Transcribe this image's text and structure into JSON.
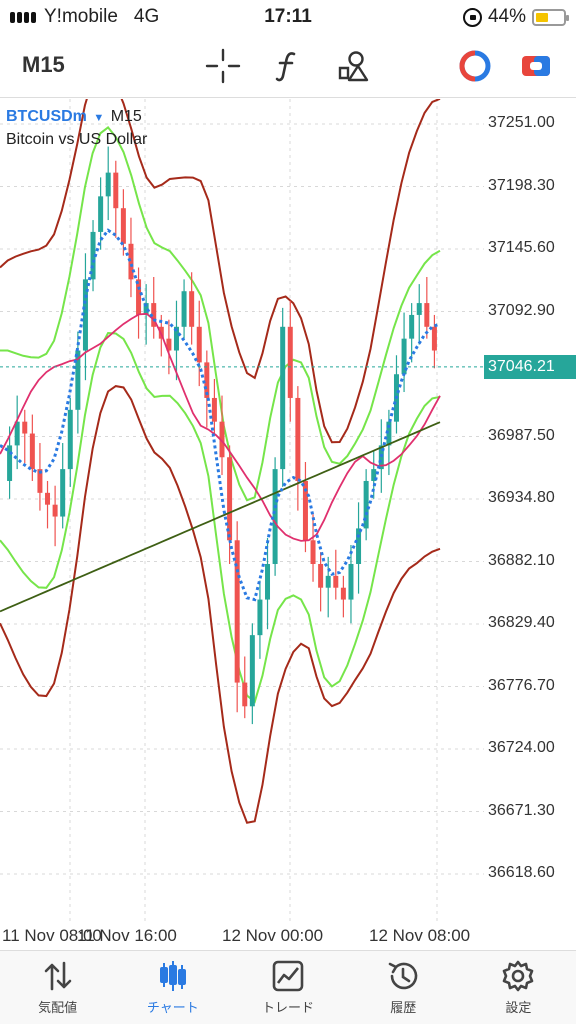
{
  "status_bar": {
    "carrier": "Y!mobile",
    "network": "4G",
    "time": "17:11",
    "battery_percent": "44%"
  },
  "toolbar": {
    "timeframe": "M15",
    "icons": [
      "crosshair-icon",
      "function-icon",
      "objects-icon",
      "circle-toggle-icon",
      "trade-toggle-icon"
    ]
  },
  "chart": {
    "symbol": "BTCUSDm",
    "timeframe": "M15",
    "description": "Bitcoin vs US Dollar",
    "current_price": "37046.21",
    "price_ticks": [
      "37251.00",
      "37198.30",
      "37145.60",
      "37092.90",
      "36987.50",
      "36934.80",
      "36882.10",
      "36829.40",
      "36776.70",
      "36724.00",
      "36671.30",
      "36618.60"
    ],
    "time_ticks": [
      "11 Nov 08:00",
      "11 Nov 16:00",
      "12 Nov 00:00",
      "12 Nov 08:00"
    ],
    "colors": {
      "bull": "#26a69a",
      "bear": "#ef5350",
      "outer_band": "#a52a1a",
      "inner_band": "#76e54a",
      "ma_fast": "#2a7ae2",
      "ma_slow": "#e0306e",
      "ma_long": "#3e5f14"
    }
  },
  "chart_data": {
    "type": "candlestick",
    "series": [
      {
        "name": "",
        "values": [
          36950,
          36980,
          37000,
          36990,
          36960,
          36940,
          36930,
          36920,
          36960,
          37010,
          37060,
          37120,
          37160,
          37190,
          37210,
          37180,
          37150,
          37120,
          37090,
          37100,
          37080,
          37070,
          37060,
          37080,
          37110,
          37080,
          37050,
          37020,
          37000,
          36970,
          36900,
          36780,
          36760,
          36820,
          36850,
          36880,
          36960,
          37080,
          37020,
          36950,
          36900,
          36880,
          36860,
          36870,
          36860,
          36850,
          36880,
          36910,
          36950,
          36960,
          36980,
          37000,
          37040,
          37070,
          37090,
          37100,
          37080,
          37060
        ]
      }
    ]
  },
  "bottom_nav": {
    "items": [
      {
        "label": "気配値",
        "icon": "quotes-icon",
        "active": false
      },
      {
        "label": "チャート",
        "icon": "chart-icon",
        "active": true
      },
      {
        "label": "トレード",
        "icon": "trade-icon",
        "active": false
      },
      {
        "label": "履歴",
        "icon": "history-icon",
        "active": false
      },
      {
        "label": "設定",
        "icon": "settings-icon",
        "active": false
      }
    ]
  }
}
